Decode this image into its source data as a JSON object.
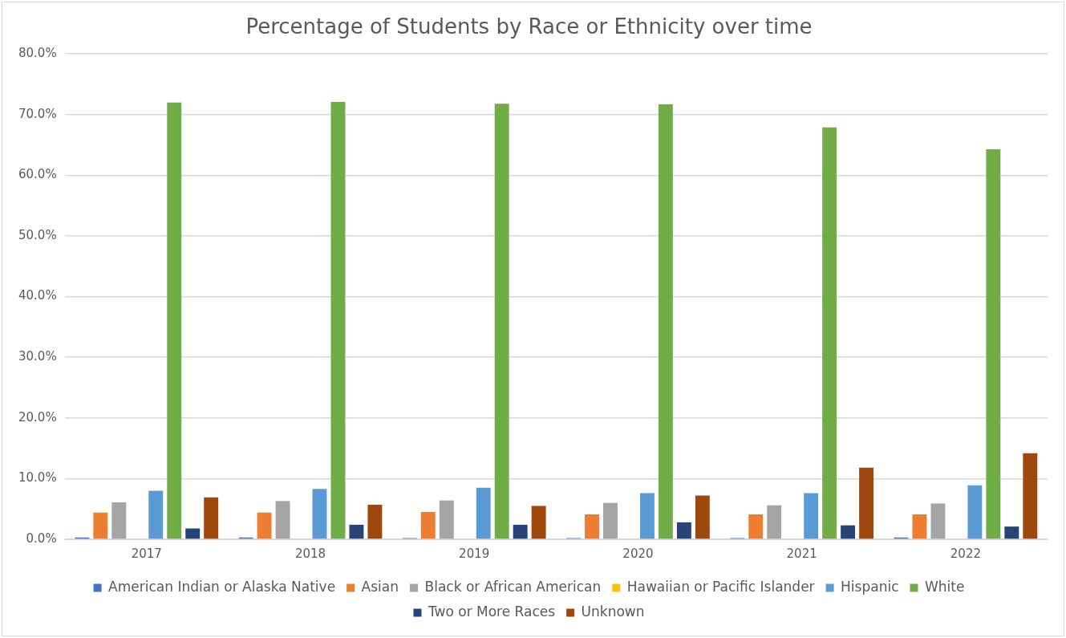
{
  "chart_data": {
    "type": "bar",
    "title": "Percentage of Students by Race or Ethnicity over time",
    "categories": [
      "2017",
      "2018",
      "2019",
      "2020",
      "2021",
      "2022"
    ],
    "series": [
      {
        "name": "American Indian or Alaska Native",
        "color": "#4472c4",
        "values": [
          0.3,
          0.3,
          0.2,
          0.2,
          0.2,
          0.3
        ]
      },
      {
        "name": "Asian",
        "color": "#ed7d31",
        "values": [
          4.4,
          4.4,
          4.5,
          4.1,
          4.1,
          4.1
        ]
      },
      {
        "name": "Black or African American",
        "color": "#a5a5a5",
        "values": [
          6.1,
          6.3,
          6.4,
          6.0,
          5.6,
          5.9
        ]
      },
      {
        "name": "Hawaiian or Pacific Islander",
        "color": "#ffc000",
        "values": [
          0,
          0,
          0,
          0,
          0,
          0
        ]
      },
      {
        "name": "Hispanic",
        "color": "#5b9bd5",
        "values": [
          8.0,
          8.3,
          8.5,
          7.6,
          7.6,
          8.9
        ]
      },
      {
        "name": "White",
        "color": "#70ad47",
        "values": [
          72.0,
          72.1,
          71.8,
          71.7,
          67.9,
          64.3
        ]
      },
      {
        "name": "Two or More Races",
        "color": "#264478",
        "values": [
          1.8,
          2.4,
          2.4,
          2.8,
          2.3,
          2.1
        ]
      },
      {
        "name": "Unknown",
        "color": "#9e480e",
        "values": [
          6.9,
          5.7,
          5.5,
          7.2,
          11.8,
          14.2
        ]
      }
    ],
    "ylim": [
      0,
      80
    ],
    "yticks": [
      {
        "value": 0,
        "label": "0.0%"
      },
      {
        "value": 10,
        "label": "10.0%"
      },
      {
        "value": 20,
        "label": "20.0%"
      },
      {
        "value": 30,
        "label": "30.0%"
      },
      {
        "value": 40,
        "label": "40.0%"
      },
      {
        "value": 50,
        "label": "50.0%"
      },
      {
        "value": 60,
        "label": "60.0%"
      },
      {
        "value": 70,
        "label": "70.0%"
      },
      {
        "value": 80,
        "label": "80.0%"
      }
    ],
    "grid": "y",
    "legend": "bottom"
  }
}
